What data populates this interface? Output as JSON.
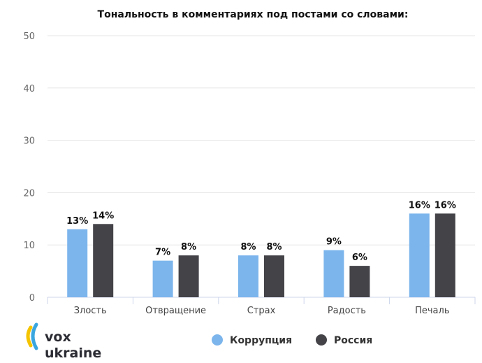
{
  "chart_data": {
    "type": "bar",
    "title": "Тональность в комментариях под постами со словами:",
    "categories": [
      "Злость",
      "Отвращение",
      "Страх",
      "Радость",
      "Печаль"
    ],
    "series": [
      {
        "name": "Коррупция",
        "color": "#7cb5ec",
        "values": [
          13,
          7,
          8,
          9,
          16
        ],
        "labels": [
          "13%",
          "7%",
          "8%",
          "9%",
          "16%"
        ]
      },
      {
        "name": "Россия",
        "color": "#434348",
        "values": [
          14,
          8,
          8,
          6,
          16
        ],
        "labels": [
          "14%",
          "8%",
          "8%",
          "6%",
          "16%"
        ]
      }
    ],
    "yticks": [
      0,
      10,
      20,
      30,
      40,
      50
    ],
    "ylim": [
      0,
      50
    ],
    "grid": true,
    "legend_position": "bottom"
  },
  "logo": {
    "line1": "vox",
    "line2": "ukraine",
    "colors": [
      "#f5c400",
      "#3aa6e0"
    ]
  }
}
